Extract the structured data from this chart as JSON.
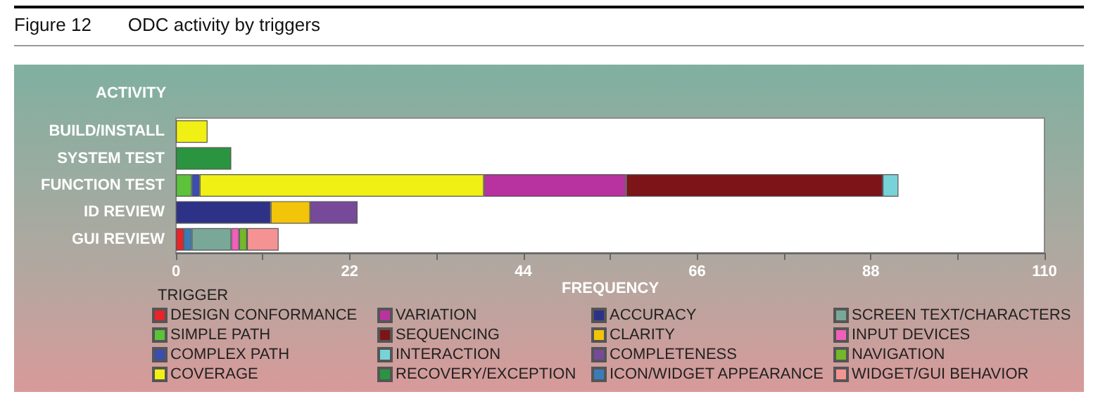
{
  "chart_data": {
    "type": "bar",
    "orientation": "horizontal",
    "stacked": true,
    "title": "Figure 12",
    "subtitle": "ODC activity by triggers",
    "xlabel": "FREQUENCY",
    "ylabel": "ACTIVITY",
    "legend_title": "TRIGGER",
    "legend": "bottom",
    "grid": false,
    "categories": [
      "BUILD/INSTALL",
      "SYSTEM TEST",
      "FUNCTION TEST",
      "ID REVIEW",
      "GUI REVIEW"
    ],
    "xlim": [
      0,
      110
    ],
    "xticks": [
      0,
      {
        "value": 11,
        "label": null
      },
      22,
      {
        "value": 33,
        "label": null
      },
      44,
      {
        "value": 55,
        "label": null
      },
      66,
      {
        "value": 77,
        "label": null
      },
      88,
      {
        "value": 99,
        "label": null
      },
      110
    ],
    "series": [
      {
        "name": "DESIGN CONFORMANCE",
        "color": "#e8232a",
        "values": [
          null,
          null,
          null,
          null,
          1
        ]
      },
      {
        "name": "SIMPLE PATH",
        "color": "#5cc23a",
        "values": [
          null,
          null,
          2,
          null,
          null
        ]
      },
      {
        "name": "COMPLEX PATH",
        "color": "#3a4db0",
        "values": [
          null,
          null,
          1,
          null,
          null
        ]
      },
      {
        "name": "COVERAGE",
        "color": "#f0f014",
        "values": [
          4,
          null,
          36,
          null,
          null
        ]
      },
      {
        "name": "VARIATION",
        "color": "#b833a0",
        "values": [
          null,
          null,
          18,
          null,
          null
        ]
      },
      {
        "name": "SEQUENCING",
        "color": "#7d1418",
        "values": [
          null,
          null,
          32.5,
          null,
          null
        ]
      },
      {
        "name": "INTERACTION",
        "color": "#78d3d8",
        "values": [
          null,
          null,
          2,
          null,
          null
        ]
      },
      {
        "name": "RECOVERY/EXCEPTION",
        "color": "#2a9440",
        "values": [
          null,
          7,
          null,
          null,
          null
        ]
      },
      {
        "name": "ACCURACY",
        "color": "#2e3287",
        "values": [
          null,
          null,
          null,
          12,
          null
        ]
      },
      {
        "name": "CLARITY",
        "color": "#f2c40a",
        "values": [
          null,
          null,
          null,
          5,
          null
        ]
      },
      {
        "name": "COMPLETENESS",
        "color": "#774a99",
        "values": [
          null,
          null,
          null,
          6,
          null
        ]
      },
      {
        "name": "ICON/WIDGET APPEARANCE",
        "color": "#3a7cb8",
        "values": [
          null,
          null,
          null,
          null,
          1
        ]
      },
      {
        "name": "SCREEN TEXT/CHARACTERS",
        "color": "#7aa898",
        "values": [
          null,
          null,
          null,
          null,
          5
        ]
      },
      {
        "name": "INPUT DEVICES",
        "color": "#f060b8",
        "values": [
          null,
          null,
          null,
          null,
          1
        ]
      },
      {
        "name": "NAVIGATION",
        "color": "#72b82a",
        "values": [
          null,
          null,
          null,
          null,
          1
        ]
      },
      {
        "name": "WIDGET/GUI BEHAVIOR",
        "color": "#f59394",
        "values": [
          null,
          null,
          null,
          null,
          4
        ]
      }
    ]
  }
}
